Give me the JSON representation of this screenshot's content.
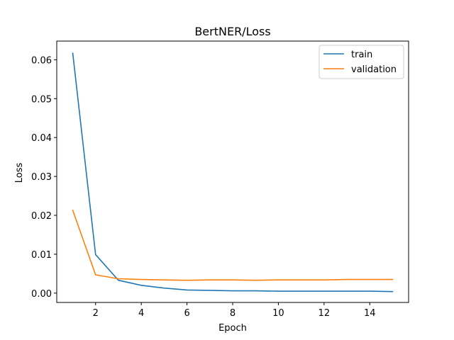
{
  "chart_data": {
    "type": "line",
    "title": "BertNER/Loss",
    "xlabel": "Epoch",
    "ylabel": "Loss",
    "x": [
      1,
      2,
      3,
      4,
      5,
      6,
      7,
      8,
      9,
      10,
      11,
      12,
      13,
      14,
      15
    ],
    "xlim": [
      0.3,
      15.7
    ],
    "ylim": [
      -0.0024,
      0.0648
    ],
    "xticks": [
      2,
      4,
      6,
      8,
      10,
      12,
      14
    ],
    "yticks": [
      0.0,
      0.01,
      0.02,
      0.03,
      0.04,
      0.05,
      0.06
    ],
    "ytick_labels": [
      "0.00",
      "0.01",
      "0.02",
      "0.03",
      "0.04",
      "0.05",
      "0.06"
    ],
    "grid": false,
    "legend_position": "top-right",
    "series": [
      {
        "name": "train",
        "color": "#1f77b4",
        "values": [
          0.0617,
          0.0099,
          0.0033,
          0.002,
          0.0013,
          0.0008,
          0.0007,
          0.0006,
          0.0006,
          0.0005,
          0.0005,
          0.0005,
          0.0005,
          0.0005,
          0.0004
        ]
      },
      {
        "name": "validation",
        "color": "#ff7f0e",
        "values": [
          0.0213,
          0.0047,
          0.0037,
          0.0035,
          0.0034,
          0.0033,
          0.0034,
          0.0034,
          0.0033,
          0.0034,
          0.0034,
          0.0034,
          0.0035,
          0.0035,
          0.0035
        ]
      }
    ]
  }
}
